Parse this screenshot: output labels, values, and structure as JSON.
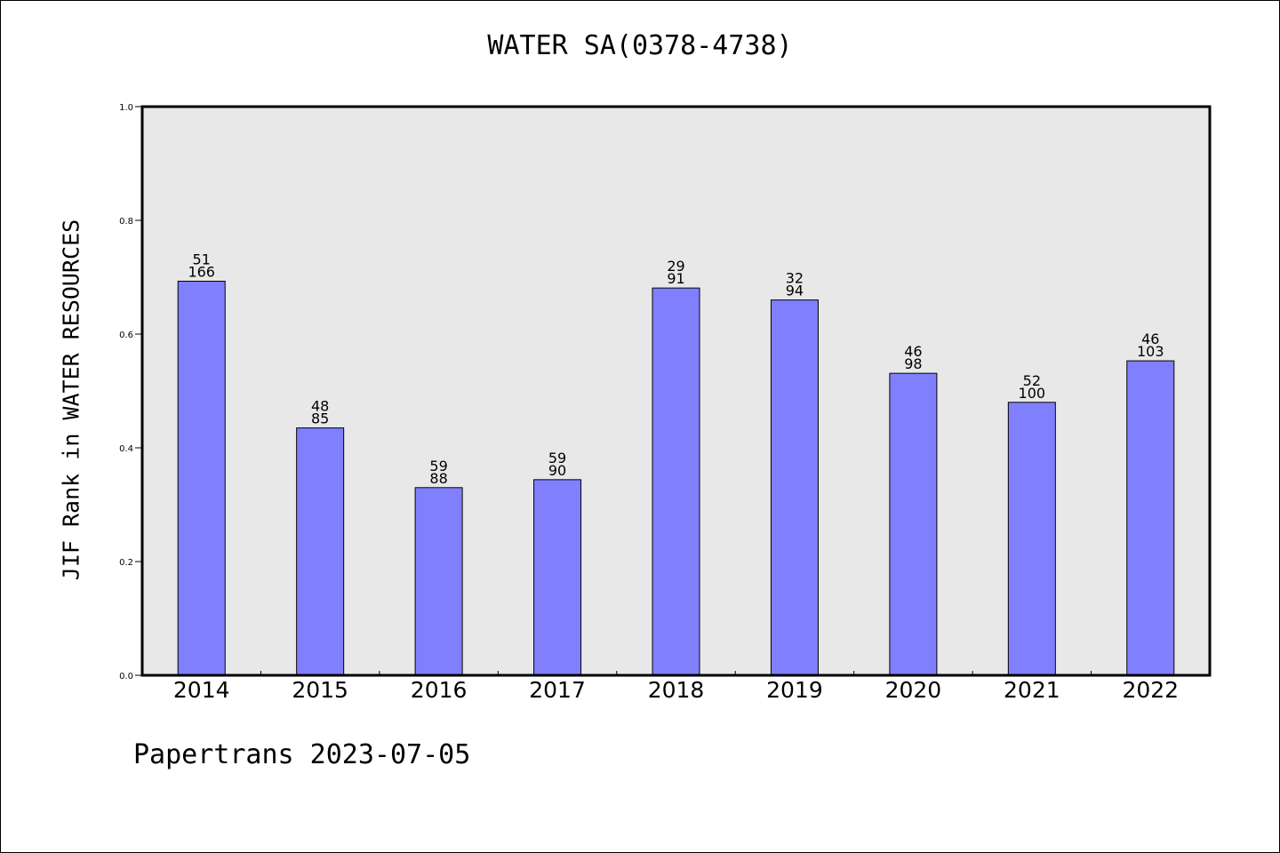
{
  "page": {
    "title": "WATER SA(0378-4738)",
    "ylabel": "JIF Rank in WATER RESOURCES",
    "footer": "Papertrans 2023-07-05"
  },
  "colors": {
    "bar_fill": "#8080ff",
    "plot_bg": "#e8e8e8",
    "axis": "#000000"
  },
  "chart_data": {
    "type": "bar",
    "title": "WATER SA(0378-4738)",
    "xlabel": "",
    "ylabel": "JIF Rank in WATER RESOURCES",
    "categories": [
      "2014",
      "2015",
      "2016",
      "2017",
      "2018",
      "2019",
      "2020",
      "2021",
      "2022"
    ],
    "values": [
      0.693,
      0.435,
      0.33,
      0.344,
      0.681,
      0.66,
      0.531,
      0.48,
      0.553
    ],
    "rank": [
      51,
      48,
      59,
      59,
      29,
      32,
      46,
      52,
      46
    ],
    "total": [
      166,
      85,
      88,
      90,
      91,
      94,
      98,
      100,
      103
    ],
    "ylim": [
      0,
      1.0
    ],
    "yticks": [
      "0.0",
      "0.2",
      "0.4",
      "0.6",
      "0.8",
      "1.0"
    ],
    "grid": false
  }
}
